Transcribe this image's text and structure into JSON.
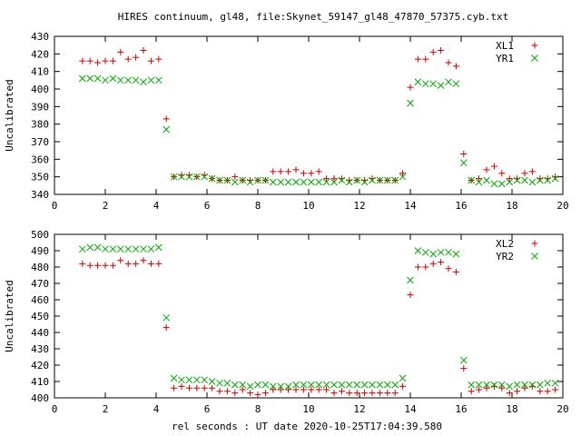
{
  "title": "HIRES continuum, gl48, file:Skynet_59147_gl48_47870_57375.cyb.txt",
  "xlabel": "rel seconds : UT date 2020-10-25T17:04:39.580",
  "colors": {
    "red": "#cc0000",
    "green": "#00aa00",
    "frame": "#000000",
    "grid": "#a0a0a0"
  },
  "chart_data": [
    {
      "type": "scatter",
      "ylabel": "Uncalibrated",
      "xlim": [
        0,
        20
      ],
      "ylim": [
        340,
        430
      ],
      "xticks": [
        0,
        2,
        4,
        6,
        8,
        10,
        12,
        14,
        16,
        18,
        20
      ],
      "yticks": [
        340,
        350,
        360,
        370,
        380,
        390,
        400,
        410,
        420,
        430
      ],
      "grid": false,
      "legend_position": "top-right",
      "series": [
        {
          "name": "XL1",
          "marker": "plus",
          "color": "#cc0000",
          "x": [
            1.1,
            1.4,
            1.7,
            2.0,
            2.3,
            2.6,
            2.9,
            3.2,
            3.5,
            3.8,
            4.1,
            4.4,
            4.7,
            5.0,
            5.3,
            5.6,
            5.9,
            6.2,
            6.5,
            6.8,
            7.1,
            7.4,
            7.7,
            8.0,
            8.3,
            8.6,
            8.9,
            9.2,
            9.5,
            9.8,
            10.1,
            10.4,
            10.7,
            11.0,
            11.3,
            11.6,
            11.9,
            12.2,
            12.5,
            12.8,
            13.1,
            13.4,
            13.7,
            14.0,
            14.3,
            14.6,
            14.9,
            15.2,
            15.5,
            15.8,
            16.1,
            16.4,
            16.7,
            17.0,
            17.3,
            17.6,
            17.9,
            18.2,
            18.5,
            18.8,
            19.1,
            19.4,
            19.7
          ],
          "y": [
            416,
            416,
            415,
            416,
            416,
            421,
            417,
            418,
            422,
            416,
            417,
            383,
            350,
            351,
            351,
            350,
            351,
            349,
            348,
            348,
            350,
            348,
            348,
            348,
            348,
            353,
            353,
            353,
            354,
            352,
            352,
            353,
            349,
            349,
            349,
            348,
            348,
            348,
            349,
            348,
            348,
            348,
            352,
            401,
            417,
            417,
            421,
            422,
            415,
            413,
            363,
            348,
            349,
            354,
            356,
            352,
            349,
            349,
            352,
            353,
            349,
            349,
            350
          ]
        },
        {
          "name": "YR1",
          "marker": "cross",
          "color": "#00aa00",
          "x": [
            1.1,
            1.4,
            1.7,
            2.0,
            2.3,
            2.6,
            2.9,
            3.2,
            3.5,
            3.8,
            4.1,
            4.4,
            4.7,
            5.0,
            5.3,
            5.6,
            5.9,
            6.2,
            6.5,
            6.8,
            7.1,
            7.4,
            7.7,
            8.0,
            8.3,
            8.6,
            8.9,
            9.2,
            9.5,
            9.8,
            10.1,
            10.4,
            10.7,
            11.0,
            11.3,
            11.6,
            11.9,
            12.2,
            12.5,
            12.8,
            13.1,
            13.4,
            13.7,
            14.0,
            14.3,
            14.6,
            14.9,
            15.2,
            15.5,
            15.8,
            16.1,
            16.4,
            16.7,
            17.0,
            17.3,
            17.6,
            17.9,
            18.2,
            18.5,
            18.8,
            19.1,
            19.4,
            19.7
          ],
          "y": [
            406,
            406,
            406,
            405,
            406,
            405,
            405,
            405,
            404,
            405,
            405,
            377,
            350,
            350,
            350,
            350,
            350,
            349,
            348,
            348,
            347,
            348,
            347,
            348,
            348,
            347,
            347,
            347,
            347,
            347,
            347,
            347,
            347,
            347,
            348,
            347,
            348,
            347,
            348,
            348,
            348,
            348,
            350,
            392,
            404,
            403,
            403,
            402,
            404,
            403,
            358,
            348,
            347,
            348,
            346,
            346,
            347,
            348,
            348,
            347,
            348,
            348,
            349
          ]
        }
      ]
    },
    {
      "type": "scatter",
      "ylabel": "Uncalibrated",
      "xlim": [
        0,
        20
      ],
      "ylim": [
        400,
        500
      ],
      "xticks": [
        0,
        2,
        4,
        6,
        8,
        10,
        12,
        14,
        16,
        18,
        20
      ],
      "yticks": [
        400,
        410,
        420,
        430,
        440,
        450,
        460,
        470,
        480,
        490,
        500
      ],
      "grid": false,
      "legend_position": "top-right",
      "series": [
        {
          "name": "XL2",
          "marker": "plus",
          "color": "#cc0000",
          "x": [
            1.1,
            1.4,
            1.7,
            2.0,
            2.3,
            2.6,
            2.9,
            3.2,
            3.5,
            3.8,
            4.1,
            4.4,
            4.7,
            5.0,
            5.3,
            5.6,
            5.9,
            6.2,
            6.5,
            6.8,
            7.1,
            7.4,
            7.7,
            8.0,
            8.3,
            8.6,
            8.9,
            9.2,
            9.5,
            9.8,
            10.1,
            10.4,
            10.7,
            11.0,
            11.3,
            11.6,
            11.9,
            12.2,
            12.5,
            12.8,
            13.1,
            13.4,
            13.7,
            14.0,
            14.3,
            14.6,
            14.9,
            15.2,
            15.5,
            15.8,
            16.1,
            16.4,
            16.7,
            17.0,
            17.3,
            17.6,
            17.9,
            18.2,
            18.5,
            18.8,
            19.1,
            19.4,
            19.7
          ],
          "y": [
            482,
            481,
            481,
            481,
            481,
            484,
            482,
            482,
            484,
            482,
            482,
            443,
            406,
            407,
            406,
            406,
            406,
            406,
            404,
            404,
            403,
            405,
            403,
            402,
            403,
            405,
            405,
            405,
            405,
            405,
            405,
            405,
            405,
            403,
            404,
            403,
            403,
            403,
            403,
            403,
            403,
            403,
            407,
            463,
            480,
            480,
            482,
            483,
            479,
            477,
            418,
            404,
            405,
            406,
            407,
            406,
            403,
            404,
            406,
            407,
            404,
            404,
            405
          ]
        },
        {
          "name": "YR2",
          "marker": "cross",
          "color": "#00aa00",
          "x": [
            1.1,
            1.4,
            1.7,
            2.0,
            2.3,
            2.6,
            2.9,
            3.2,
            3.5,
            3.8,
            4.1,
            4.4,
            4.7,
            5.0,
            5.3,
            5.6,
            5.9,
            6.2,
            6.5,
            6.8,
            7.1,
            7.4,
            7.7,
            8.0,
            8.3,
            8.6,
            8.9,
            9.2,
            9.5,
            9.8,
            10.1,
            10.4,
            10.7,
            11.0,
            11.3,
            11.6,
            11.9,
            12.2,
            12.5,
            12.8,
            13.1,
            13.4,
            13.7,
            14.0,
            14.3,
            14.6,
            14.9,
            15.2,
            15.5,
            15.8,
            16.1,
            16.4,
            16.7,
            17.0,
            17.3,
            17.6,
            17.9,
            18.2,
            18.5,
            18.8,
            19.1,
            19.4,
            19.7
          ],
          "y": [
            491,
            492,
            492,
            491,
            491,
            491,
            491,
            491,
            491,
            491,
            492,
            449,
            412,
            411,
            411,
            411,
            411,
            410,
            409,
            409,
            408,
            408,
            407,
            408,
            408,
            407,
            407,
            407,
            408,
            408,
            408,
            408,
            408,
            408,
            408,
            408,
            408,
            408,
            408,
            408,
            408,
            408,
            412,
            472,
            490,
            489,
            488,
            489,
            489,
            488,
            423,
            408,
            408,
            408,
            408,
            408,
            407,
            408,
            408,
            408,
            408,
            409,
            409
          ]
        }
      ]
    }
  ]
}
